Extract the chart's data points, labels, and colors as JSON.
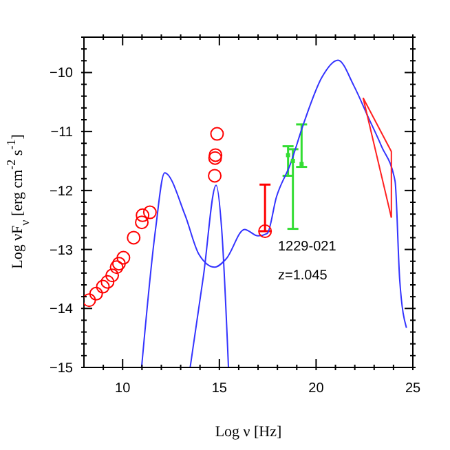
{
  "chart_data": {
    "type": "scatter",
    "xlabel": "Log ν  [Hz]",
    "ylabel": "Log νF$_{ν}$  [erg cm$^{-2}$ s$^{-1}$]",
    "xlim": [
      8,
      25
    ],
    "ylim": [
      -15,
      -9.4
    ],
    "xticks": [
      {
        "value": 9,
        "label": null
      },
      10,
      {
        "value": 11,
        "label": null
      },
      {
        "value": 12,
        "label": null
      },
      {
        "value": 13,
        "label": null
      },
      {
        "value": 14,
        "label": null
      },
      15,
      {
        "value": 16,
        "label": null
      },
      {
        "value": 17,
        "label": null
      },
      {
        "value": 18,
        "label": null
      },
      {
        "value": 19,
        "label": null
      },
      20,
      {
        "value": 21,
        "label": null
      },
      {
        "value": 22,
        "label": null
      },
      {
        "value": 23,
        "label": null
      },
      {
        "value": 24,
        "label": null
      },
      25
    ],
    "yticks": [
      {
        "value": -9.4,
        "label": null
      },
      {
        "value": -9.6,
        "label": null
      },
      {
        "value": -9.8,
        "label": null
      },
      -10,
      {
        "value": -10.2,
        "label": null
      },
      {
        "value": -10.4,
        "label": null
      },
      {
        "value": -10.6,
        "label": null
      },
      {
        "value": -10.8,
        "label": null
      },
      -11,
      {
        "value": -11.2,
        "label": null
      },
      {
        "value": -11.4,
        "label": null
      },
      {
        "value": -11.6,
        "label": null
      },
      {
        "value": -11.8,
        "label": null
      },
      -12,
      {
        "value": -12.2,
        "label": null
      },
      {
        "value": -12.4,
        "label": null
      },
      {
        "value": -12.6,
        "label": null
      },
      {
        "value": -12.8,
        "label": null
      },
      -13,
      {
        "value": -13.2,
        "label": null
      },
      {
        "value": -13.4,
        "label": null
      },
      {
        "value": -13.6,
        "label": null
      },
      {
        "value": -13.8,
        "label": null
      },
      -14,
      {
        "value": -14.2,
        "label": null
      },
      {
        "value": -14.4,
        "label": null
      },
      {
        "value": -14.6,
        "label": null
      },
      {
        "value": -14.8,
        "label": null
      },
      -15
    ],
    "annotations": [
      "1229-021",
      "z=1.045"
    ],
    "series": [
      {
        "marker": "circle",
        "color": "#ff0000",
        "x": [
          8.27,
          8.63,
          8.98,
          9.22,
          9.46,
          9.69,
          9.81,
          10.04,
          10.57,
          10.99,
          11.03,
          11.41,
          14.76,
          14.78,
          14.8,
          14.88,
          17.36
        ],
        "values": [
          -13.86,
          -13.75,
          -13.63,
          -13.55,
          -13.44,
          -13.3,
          -13.24,
          -13.14,
          -12.8,
          -12.54,
          -12.42,
          -12.37,
          -11.75,
          -11.45,
          -11.4,
          -11.04,
          -12.69
        ],
        "errors": [
          null,
          null,
          null,
          null,
          null,
          null,
          null,
          null,
          null,
          null,
          null,
          null,
          null,
          null,
          null,
          null,
          [
            -12.69,
            -11.9
          ]
        ]
      },
      {
        "marker": "square",
        "color": "#33dd33",
        "x": [
          18.55,
          18.8,
          19.25
        ],
        "values": [
          -11.4,
          -11.5,
          -11.55
        ],
        "errors": [
          [
            -11.75,
            -11.25
          ],
          [
            -12.65,
            -11.3
          ],
          [
            -11.6,
            -10.88
          ]
        ]
      },
      {
        "type": "line",
        "marker": "none",
        "color": "#3333ff",
        "x": [
          10.98,
          11.7,
          12.17,
          13.23,
          13.94,
          14.76,
          15.35,
          16.3,
          17.0,
          17.47,
          17.95,
          18.66,
          19.36,
          20.3,
          21.13,
          21.96,
          22.67,
          23.38,
          24.08,
          24.32,
          24.67
        ],
        "values": [
          -15,
          -12.66,
          -11.7,
          -12.42,
          -13.08,
          -13.3,
          -13.16,
          -12.66,
          -12.77,
          -12.73,
          -12.11,
          -11.56,
          -10.86,
          -10.08,
          -9.79,
          -10.23,
          -10.74,
          -11.25,
          -11.84,
          -13.51,
          -14.33
        ]
      },
      {
        "type": "line",
        "marker": "none",
        "color": "#3333ff",
        "x": [
          13.49,
          14.18,
          14.83,
          15.12,
          15.47
        ],
        "values": [
          -15,
          -13.44,
          -11.91,
          -12.66,
          -15
        ]
      },
      {
        "type": "line",
        "marker": "none",
        "color": "#ff2020",
        "x": [
          22.43,
          23.89,
          23.89
        ],
        "values": [
          -10.43,
          -11.34,
          -12.46
        ]
      },
      {
        "type": "line",
        "marker": "none",
        "color": "#ff2020",
        "x": [
          22.43,
          23.89
        ],
        "values": [
          -10.43,
          -12.46
        ]
      }
    ]
  }
}
